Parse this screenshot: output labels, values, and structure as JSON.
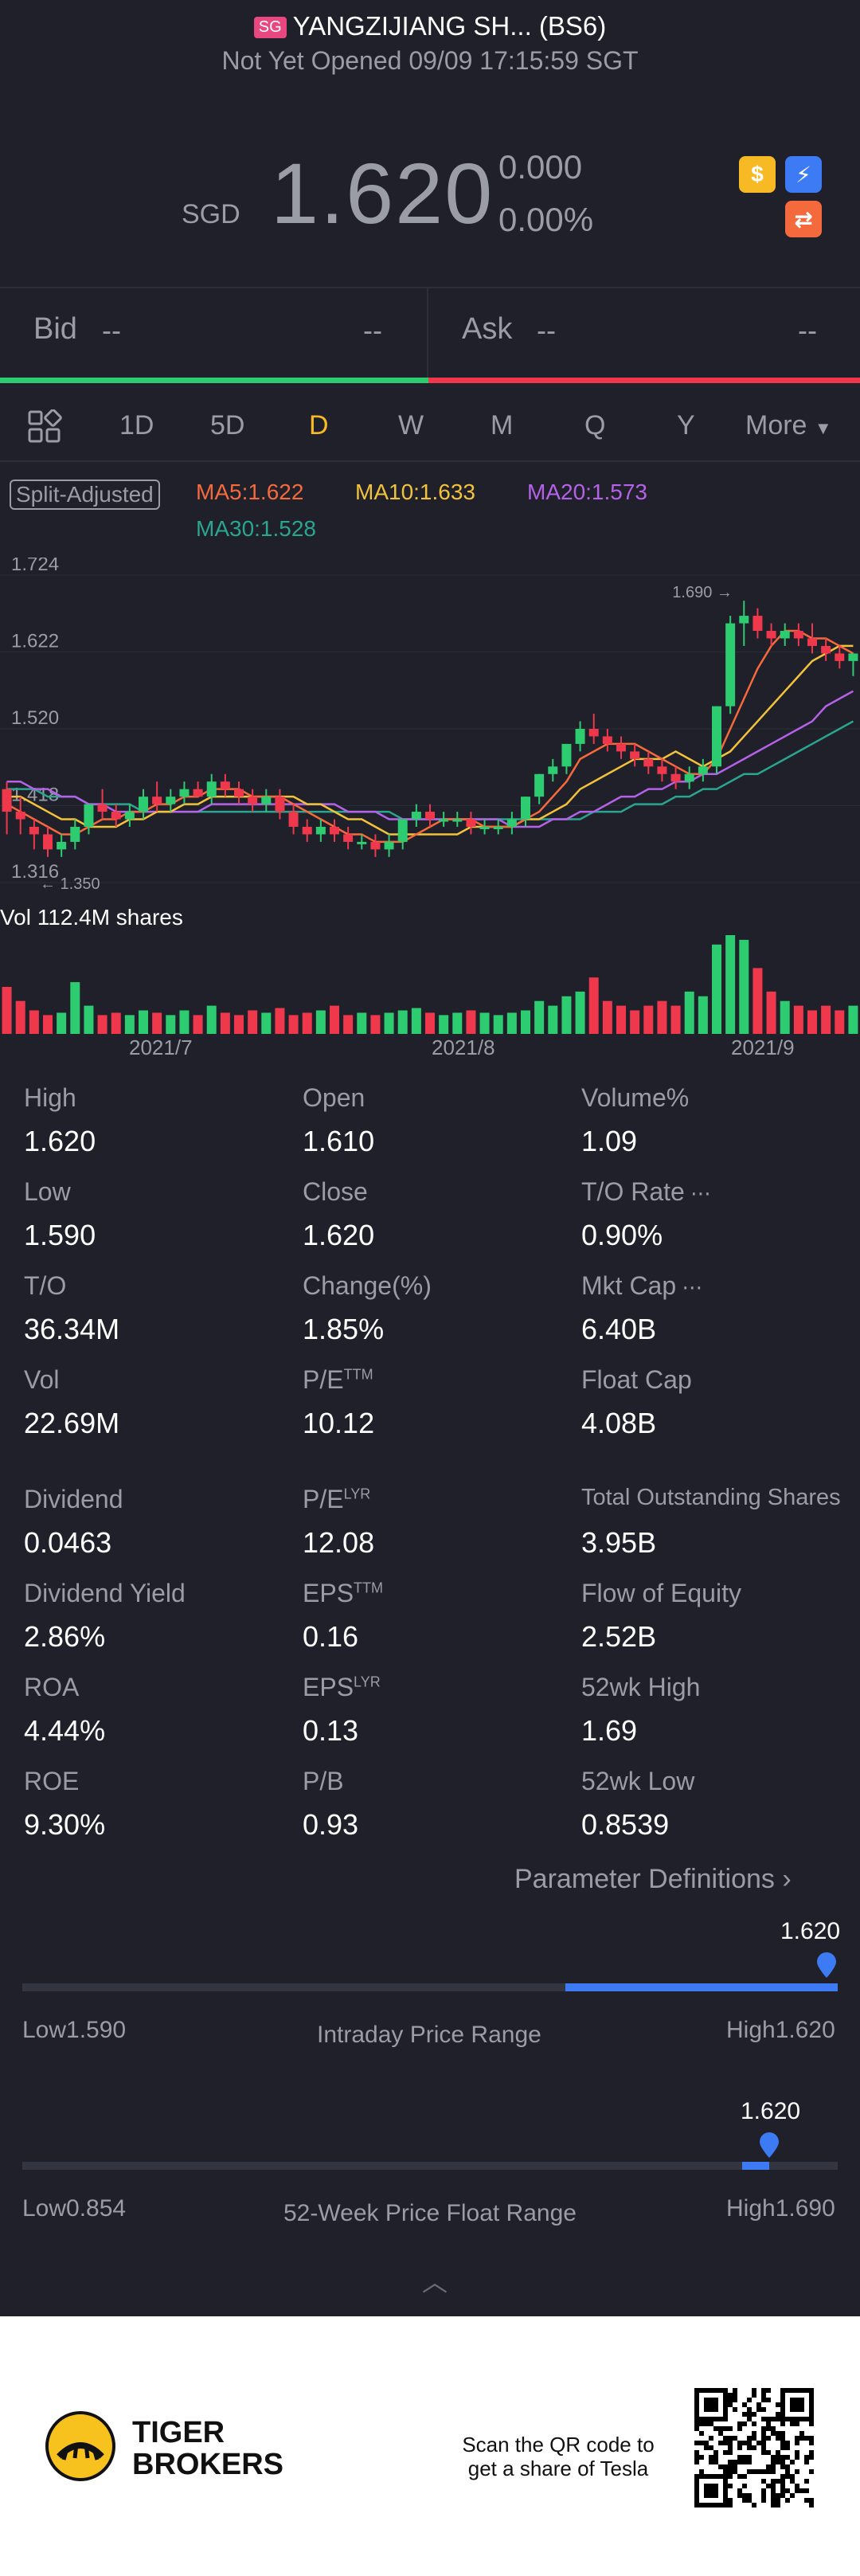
{
  "header": {
    "market_badge": "SG",
    "title": "YANGZIJIANG SH... (BS6)",
    "status": "Not Yet Opened 09/09 17:15:59 SGT"
  },
  "quote": {
    "currency": "SGD",
    "price": "1.620",
    "change": "0.000",
    "change_pct": "0.00%"
  },
  "icons": [
    "dollar-icon",
    "lightning-icon",
    "swap-icon"
  ],
  "bidask": {
    "bid_label": "Bid",
    "bid_price": "--",
    "bid_size": "--",
    "ask_label": "Ask",
    "ask_price": "--",
    "ask_size": "--"
  },
  "periods": [
    "1D",
    "5D",
    "D",
    "W",
    "M",
    "Q",
    "Y",
    "More"
  ],
  "active_period": "D",
  "chart_labels": {
    "adjust_mode": "Split-Adjusted",
    "ma5": "MA5:1.622",
    "ma10": "MA10:1.633",
    "ma20": "MA20:1.573",
    "ma30": "MA30:1.528",
    "high_marker": "1.690",
    "low_marker": "1.350",
    "volume": "Vol  112.4M shares"
  },
  "colors": {
    "up": "#2ecc71",
    "down": "#f0384d",
    "ma5": "#f46a3d",
    "ma10": "#f3c23b",
    "ma20": "#b561e8",
    "ma30": "#2aa58f",
    "accent": "#f7b924",
    "blue": "#3d7bf4"
  },
  "chart_data": {
    "type": "candlestick",
    "y_ticks": [
      "1.724",
      "1.622",
      "1.520",
      "1.418",
      "1.316"
    ],
    "ylim": [
      1.316,
      1.724
    ],
    "x_ticks": [
      "2021/7",
      "2021/8",
      "2021/9"
    ],
    "ohlc": [
      [
        1.44,
        1.45,
        1.38,
        1.41
      ],
      [
        1.41,
        1.43,
        1.38,
        1.4
      ],
      [
        1.39,
        1.4,
        1.36,
        1.38
      ],
      [
        1.38,
        1.39,
        1.35,
        1.36
      ],
      [
        1.36,
        1.38,
        1.35,
        1.37
      ],
      [
        1.37,
        1.4,
        1.36,
        1.39
      ],
      [
        1.39,
        1.42,
        1.38,
        1.42
      ],
      [
        1.42,
        1.44,
        1.4,
        1.41
      ],
      [
        1.41,
        1.42,
        1.39,
        1.4
      ],
      [
        1.4,
        1.42,
        1.39,
        1.41
      ],
      [
        1.41,
        1.44,
        1.4,
        1.43
      ],
      [
        1.43,
        1.45,
        1.41,
        1.42
      ],
      [
        1.42,
        1.44,
        1.41,
        1.43
      ],
      [
        1.43,
        1.45,
        1.42,
        1.44
      ],
      [
        1.44,
        1.45,
        1.43,
        1.43
      ],
      [
        1.43,
        1.46,
        1.42,
        1.45
      ],
      [
        1.45,
        1.46,
        1.43,
        1.44
      ],
      [
        1.44,
        1.45,
        1.42,
        1.43
      ],
      [
        1.43,
        1.44,
        1.41,
        1.42
      ],
      [
        1.42,
        1.44,
        1.41,
        1.43
      ],
      [
        1.43,
        1.44,
        1.4,
        1.41
      ],
      [
        1.41,
        1.42,
        1.38,
        1.39
      ],
      [
        1.39,
        1.4,
        1.37,
        1.38
      ],
      [
        1.38,
        1.4,
        1.37,
        1.39
      ],
      [
        1.39,
        1.4,
        1.37,
        1.38
      ],
      [
        1.38,
        1.39,
        1.36,
        1.37
      ],
      [
        1.37,
        1.38,
        1.36,
        1.37
      ],
      [
        1.37,
        1.38,
        1.35,
        1.36
      ],
      [
        1.36,
        1.38,
        1.35,
        1.37
      ],
      [
        1.37,
        1.4,
        1.36,
        1.4
      ],
      [
        1.4,
        1.42,
        1.39,
        1.41
      ],
      [
        1.41,
        1.42,
        1.39,
        1.4
      ],
      [
        1.4,
        1.41,
        1.39,
        1.4
      ],
      [
        1.4,
        1.41,
        1.39,
        1.4
      ],
      [
        1.4,
        1.41,
        1.38,
        1.39
      ],
      [
        1.39,
        1.4,
        1.38,
        1.39
      ],
      [
        1.39,
        1.4,
        1.38,
        1.39
      ],
      [
        1.39,
        1.41,
        1.38,
        1.4
      ],
      [
        1.4,
        1.43,
        1.39,
        1.43
      ],
      [
        1.43,
        1.46,
        1.42,
        1.46
      ],
      [
        1.46,
        1.48,
        1.45,
        1.47
      ],
      [
        1.47,
        1.5,
        1.46,
        1.5
      ],
      [
        1.5,
        1.53,
        1.49,
        1.52
      ],
      [
        1.52,
        1.54,
        1.5,
        1.51
      ],
      [
        1.51,
        1.52,
        1.49,
        1.5
      ],
      [
        1.5,
        1.51,
        1.48,
        1.49
      ],
      [
        1.49,
        1.5,
        1.47,
        1.48
      ],
      [
        1.48,
        1.49,
        1.46,
        1.47
      ],
      [
        1.47,
        1.48,
        1.45,
        1.46
      ],
      [
        1.46,
        1.47,
        1.44,
        1.45
      ],
      [
        1.45,
        1.47,
        1.44,
        1.46
      ],
      [
        1.46,
        1.48,
        1.45,
        1.47
      ],
      [
        1.47,
        1.55,
        1.46,
        1.55
      ],
      [
        1.55,
        1.67,
        1.54,
        1.66
      ],
      [
        1.66,
        1.69,
        1.63,
        1.67
      ],
      [
        1.67,
        1.68,
        1.64,
        1.65
      ],
      [
        1.65,
        1.66,
        1.63,
        1.64
      ],
      [
        1.64,
        1.66,
        1.63,
        1.65
      ],
      [
        1.65,
        1.66,
        1.63,
        1.64
      ],
      [
        1.64,
        1.66,
        1.62,
        1.63
      ],
      [
        1.63,
        1.64,
        1.61,
        1.62
      ],
      [
        1.62,
        1.63,
        1.6,
        1.61
      ],
      [
        1.61,
        1.62,
        1.59,
        1.62
      ]
    ],
    "volume": [
      20,
      14,
      10,
      8,
      9,
      22,
      12,
      8,
      9,
      8,
      10,
      9,
      8,
      10,
      8,
      12,
      9,
      8,
      10,
      9,
      11,
      8,
      9,
      10,
      12,
      8,
      9,
      8,
      9,
      10,
      11,
      9,
      8,
      9,
      10,
      9,
      8,
      9,
      10,
      14,
      12,
      16,
      18,
      24,
      14,
      12,
      10,
      12,
      14,
      12,
      18,
      16,
      38,
      42,
      40,
      28,
      18,
      14,
      12,
      10,
      12,
      10,
      12
    ],
    "ma5": [
      1.42,
      1.41,
      1.4,
      1.39,
      1.38,
      1.38,
      1.39,
      1.4,
      1.4,
      1.41,
      1.41,
      1.42,
      1.42,
      1.43,
      1.43,
      1.44,
      1.44,
      1.44,
      1.43,
      1.43,
      1.43,
      1.42,
      1.41,
      1.4,
      1.39,
      1.38,
      1.38,
      1.37,
      1.37,
      1.37,
      1.38,
      1.39,
      1.4,
      1.4,
      1.4,
      1.39,
      1.39,
      1.39,
      1.4,
      1.41,
      1.43,
      1.45,
      1.48,
      1.49,
      1.5,
      1.5,
      1.5,
      1.49,
      1.48,
      1.47,
      1.46,
      1.46,
      1.48,
      1.52,
      1.56,
      1.6,
      1.63,
      1.65,
      1.65,
      1.64,
      1.64,
      1.63,
      1.62
    ],
    "ma10": [
      1.43,
      1.43,
      1.42,
      1.41,
      1.4,
      1.4,
      1.39,
      1.39,
      1.39,
      1.4,
      1.4,
      1.41,
      1.41,
      1.42,
      1.42,
      1.43,
      1.43,
      1.43,
      1.43,
      1.43,
      1.43,
      1.43,
      1.42,
      1.42,
      1.41,
      1.4,
      1.4,
      1.39,
      1.38,
      1.38,
      1.38,
      1.38,
      1.38,
      1.38,
      1.39,
      1.39,
      1.39,
      1.39,
      1.4,
      1.4,
      1.41,
      1.42,
      1.44,
      1.45,
      1.46,
      1.47,
      1.48,
      1.48,
      1.48,
      1.49,
      1.48,
      1.47,
      1.48,
      1.49,
      1.51,
      1.53,
      1.55,
      1.57,
      1.59,
      1.61,
      1.62,
      1.63,
      1.63
    ],
    "ma20": [
      1.45,
      1.45,
      1.44,
      1.44,
      1.43,
      1.43,
      1.42,
      1.42,
      1.41,
      1.41,
      1.41,
      1.41,
      1.41,
      1.41,
      1.41,
      1.42,
      1.42,
      1.42,
      1.42,
      1.42,
      1.42,
      1.42,
      1.42,
      1.42,
      1.42,
      1.41,
      1.41,
      1.41,
      1.4,
      1.4,
      1.4,
      1.4,
      1.4,
      1.4,
      1.4,
      1.4,
      1.4,
      1.39,
      1.39,
      1.39,
      1.4,
      1.4,
      1.41,
      1.41,
      1.42,
      1.43,
      1.43,
      1.44,
      1.44,
      1.45,
      1.45,
      1.46,
      1.46,
      1.47,
      1.48,
      1.49,
      1.5,
      1.51,
      1.52,
      1.53,
      1.55,
      1.56,
      1.57
    ],
    "ma30": [
      1.44,
      1.44,
      1.44,
      1.43,
      1.43,
      1.43,
      1.42,
      1.42,
      1.42,
      1.42,
      1.41,
      1.41,
      1.41,
      1.41,
      1.41,
      1.41,
      1.41,
      1.41,
      1.41,
      1.41,
      1.41,
      1.41,
      1.41,
      1.41,
      1.41,
      1.41,
      1.41,
      1.41,
      1.41,
      1.4,
      1.4,
      1.4,
      1.4,
      1.4,
      1.4,
      1.4,
      1.4,
      1.4,
      1.4,
      1.4,
      1.4,
      1.4,
      1.4,
      1.41,
      1.41,
      1.41,
      1.42,
      1.42,
      1.42,
      1.43,
      1.43,
      1.44,
      1.44,
      1.45,
      1.46,
      1.46,
      1.47,
      1.48,
      1.49,
      1.5,
      1.51,
      1.52,
      1.53
    ]
  },
  "stats": [
    {
      "label": "High",
      "value": "1.620"
    },
    {
      "label": "Open",
      "value": "1.610"
    },
    {
      "label": "Volume%",
      "value": "1.09"
    },
    {
      "label": "Low",
      "value": "1.590"
    },
    {
      "label": "Close",
      "value": "1.620"
    },
    {
      "label": "T/O Rate",
      "value": "0.90%"
    },
    {
      "label": "T/O",
      "value": "36.34M"
    },
    {
      "label": "Change(%)",
      "value": "1.85%"
    },
    {
      "label": "Mkt Cap",
      "value": "6.40B"
    },
    {
      "label": "Vol",
      "value": "22.69M"
    },
    {
      "label": "P/E",
      "sup": "TTM",
      "value": "10.12"
    },
    {
      "label": "Float Cap",
      "value": "4.08B"
    },
    {
      "label": "Dividend",
      "value": "0.0463"
    },
    {
      "label": "P/E",
      "sup": "LYR",
      "value": "12.08"
    },
    {
      "label": "Total Outstanding Shares",
      "value": "3.95B"
    },
    {
      "label": "Dividend Yield",
      "value": "2.86%"
    },
    {
      "label": "EPS",
      "sup": "TTM",
      "value": "0.16"
    },
    {
      "label": "Flow of Equity",
      "value": "2.52B"
    },
    {
      "label": "ROA",
      "value": "4.44%"
    },
    {
      "label": "EPS",
      "sup": "LYR",
      "value": "0.13"
    },
    {
      "label": "52wk High",
      "value": "1.69"
    },
    {
      "label": "ROE",
      "value": "9.30%"
    },
    {
      "label": "P/B",
      "value": "0.93"
    },
    {
      "label": "52wk Low",
      "value": "0.8539"
    }
  ],
  "param_def": "Parameter Definitions",
  "intraday": {
    "marker": "1.620",
    "low": "Low1.590",
    "title": "Intraday Price Range",
    "high": "High1.620",
    "position": 1.0
  },
  "week52": {
    "marker": "1.620",
    "low": "Low0.854",
    "title": "52-Week Price Float Range",
    "high": "High1.690",
    "position": 0.91
  },
  "footer": {
    "brand_line1": "TIGER",
    "brand_line2": "BROKERS",
    "qr_text_line1": "Scan the QR code to",
    "qr_text_line2": "get a share of Tesla"
  }
}
